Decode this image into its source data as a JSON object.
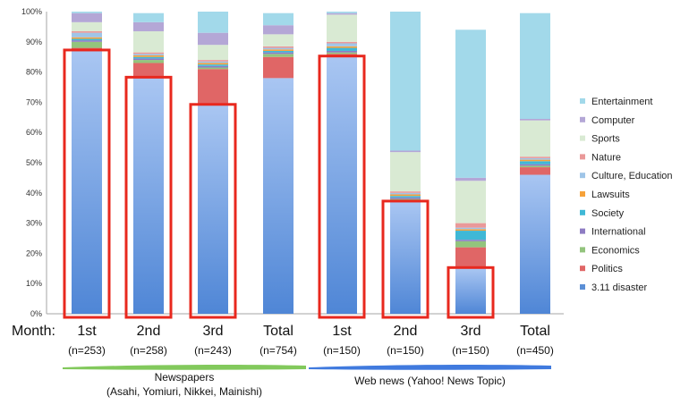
{
  "chart_data": {
    "type": "bar",
    "stacked": true,
    "ylim": [
      0,
      100
    ],
    "yticks": [
      "0%",
      "10%",
      "20%",
      "30%",
      "40%",
      "50%",
      "60%",
      "70%",
      "80%",
      "90%",
      "100%"
    ],
    "month_prefix": "Month:",
    "categories": [
      "1st",
      "2nd",
      "3rd",
      "Total",
      "1st",
      "2nd",
      "3rd",
      "Total"
    ],
    "sample_sizes": [
      "(n=253)",
      "(n=258)",
      "(n=243)",
      "(n=754)",
      "(n=150)",
      "(n=150)",
      "(n=150)",
      "(n=450)"
    ],
    "groups": [
      {
        "label": "Newspapers",
        "sublabel": "(Asahi, Yomiuri, Nikkei, Mainishi)",
        "color": "#6cbf3f"
      },
      {
        "label": "Web news (Yahoo! News Topic)",
        "sublabel": "",
        "color": "#1e63d8"
      }
    ],
    "series": [
      {
        "name": "3.11 disaster",
        "color": "#5b8fd6",
        "values": [
          87,
          78,
          69,
          78,
          85,
          37,
          15,
          46
        ]
      },
      {
        "name": "Politics",
        "color": "#e06666",
        "values": [
          1,
          5,
          12,
          7,
          1,
          0.5,
          7,
          2.5
        ]
      },
      {
        "name": "Economics",
        "color": "#93c47d",
        "values": [
          2,
          1,
          0.5,
          1,
          0.5,
          0.5,
          2,
          0.5
        ]
      },
      {
        "name": "International",
        "color": "#8e7cc3",
        "values": [
          0.5,
          0.5,
          0.5,
          0.5,
          0.5,
          0.5,
          0.5,
          0.5
        ]
      },
      {
        "name": "Society",
        "color": "#3fb8d6",
        "values": [
          0.5,
          0.5,
          0.5,
          0.5,
          1,
          0.5,
          3,
          1
        ]
      },
      {
        "name": "Lawsuits",
        "color": "#f6a23a",
        "values": [
          0.5,
          0.5,
          0.5,
          0.5,
          0.5,
          0.5,
          0.5,
          0.5
        ]
      },
      {
        "name": "Culture, Education",
        "color": "#9fc5e8",
        "values": [
          1.5,
          0.5,
          0.5,
          0.5,
          1,
          0.5,
          0.5,
          0.5
        ]
      },
      {
        "name": "Nature",
        "color": "#ea9999",
        "values": [
          0.5,
          0.5,
          0.5,
          0.5,
          0.5,
          0.5,
          1.5,
          0.5
        ]
      },
      {
        "name": "Sports",
        "color": "#d9ead3",
        "values": [
          3,
          7,
          5,
          4,
          9,
          13,
          14,
          12
        ]
      },
      {
        "name": "Computer",
        "color": "#b4a7d6",
        "values": [
          3,
          3,
          4,
          3,
          0.5,
          0.5,
          1,
          0.5
        ]
      },
      {
        "name": "Entertainment",
        "color": "#a2d9ea",
        "values": [
          0.5,
          3,
          7,
          4,
          0.5,
          46,
          49,
          35
        ]
      }
    ],
    "highlighted_segments": [
      {
        "category_index": 0,
        "value": 87
      },
      {
        "category_index": 1,
        "value": 78
      },
      {
        "category_index": 2,
        "value": 69
      },
      {
        "category_index": 4,
        "value": 85
      },
      {
        "category_index": 5,
        "value": 37
      },
      {
        "category_index": 6,
        "value": 15
      }
    ],
    "highlight_color": "#e8281e",
    "legend_position": "right",
    "grid": false
  }
}
